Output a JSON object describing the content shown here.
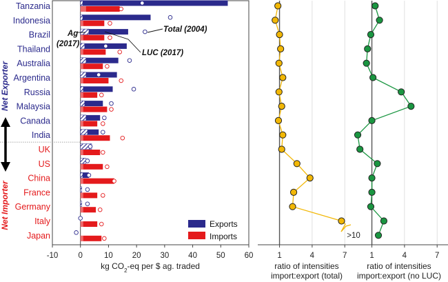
{
  "chart_data": [
    {
      "type": "bar",
      "orientation": "horizontal",
      "categories": [
        "Tanzania",
        "Indonesia",
        "Brazil",
        "Thailand",
        "Australia",
        "Argentina",
        "Russia",
        "Malaysia",
        "Canada",
        "India",
        "UK",
        "US",
        "China",
        "France",
        "Germany",
        "Italy",
        "Japan"
      ],
      "group_labels": [
        {
          "label": "Net Exporter",
          "categories": [
            "Tanzania",
            "Indonesia",
            "Brazil",
            "Thailand",
            "Australia",
            "Argentina",
            "Russia",
            "Malaysia",
            "Canada",
            "India"
          ],
          "color": "#2b2a8c"
        },
        {
          "label": "Net Importer",
          "categories": [
            "UK",
            "US",
            "China",
            "France",
            "Germany",
            "Italy",
            "Japan"
          ],
          "color": "#e41a1c"
        }
      ],
      "series": [
        {
          "name": "Exports",
          "color": "#2b2a8c",
          "values": [
            52.5,
            25,
            17,
            16.5,
            13.5,
            13,
            11.5,
            8,
            7,
            6.5,
            4,
            2,
            3,
            0.5,
            0.5,
            0,
            0
          ],
          "ag_part": [
            0.8,
            0.8,
            3,
            1.5,
            2,
            2,
            1,
            1.5,
            2,
            2.5,
            4,
            2,
            0.8,
            0.5,
            0.5,
            0,
            0
          ],
          "total_2004": [
            22,
            32,
            23,
            9,
            17.5,
            6.5,
            19,
            11,
            8.5,
            8,
            3.5,
            2.5,
            3,
            2.5,
            2.5,
            0,
            -1.5
          ],
          "luc_2017_marker": [
            22,
            null,
            null,
            9,
            null,
            6.5,
            null,
            null,
            null,
            null,
            null,
            null,
            null,
            null,
            null,
            null,
            null
          ]
        },
        {
          "name": "Imports",
          "color": "#e41a1c",
          "values": [
            14,
            8.5,
            8.5,
            9,
            8,
            10,
            6,
            9.5,
            6,
            10.5,
            7,
            8,
            12,
            6,
            5.5,
            6,
            7.5
          ],
          "ag_part": [
            2,
            1,
            1,
            1,
            1,
            1,
            1,
            1,
            1,
            1,
            1,
            1,
            1,
            1,
            1,
            1,
            1
          ],
          "total_2004": [
            14.5,
            10.5,
            10.5,
            14,
            9.5,
            14.5,
            7.5,
            11,
            8,
            15,
            8,
            9.5,
            12,
            8,
            7,
            7.5,
            8.5
          ]
        }
      ],
      "annotations": [
        "Total (2004)",
        "LUC (2017)",
        "Ag (2017)"
      ],
      "xlabel": "kg CO2-eq per $ ag. traded",
      "xlim": [
        -10,
        60
      ],
      "xticks": [
        "-10",
        "0",
        "10",
        "20",
        "30",
        "40",
        "50",
        "60"
      ],
      "legend": {
        "placement": "bottom-right",
        "entries": [
          "Exports",
          "Imports"
        ]
      }
    },
    {
      "type": "line",
      "xlabel_line1": "ratio of intensities",
      "xlabel_line2": "import:export (total)",
      "xticks": [
        "1",
        "4",
        "7"
      ],
      "xlim": [
        -1,
        8
      ],
      "values": [
        0.85,
        0.6,
        1.0,
        1.1,
        0.95,
        1.3,
        0.95,
        1.2,
        0.9,
        1.3,
        1.2,
        2.6,
        3.8,
        2.3,
        2.2,
        6.7,
        null
      ],
      "color": "#f2b705",
      "break_label": ">10"
    },
    {
      "type": "line",
      "xlabel_line1": "ratio of intensities",
      "xlabel_line2": "import:export (no LUC)",
      "xticks": [
        "1",
        "4",
        "7"
      ],
      "xlim": [
        -1,
        8
      ],
      "values": [
        1.3,
        1.7,
        0.9,
        0.6,
        0.5,
        1.1,
        3.7,
        4.6,
        1.0,
        -0.3,
        -0.1,
        1.5,
        1.0,
        1.0,
        0.9,
        2.1,
        1.6
      ],
      "color": "#1a9641"
    }
  ]
}
